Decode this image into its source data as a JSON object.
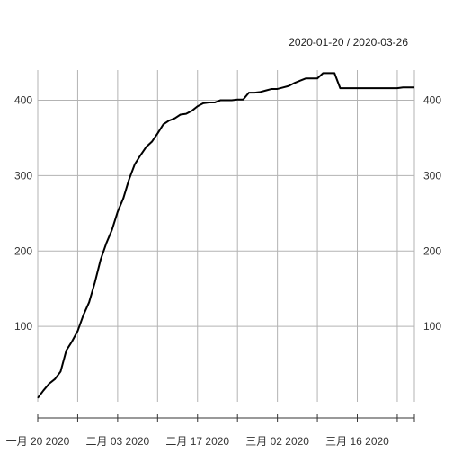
{
  "header": {
    "date_range": "2020-01-20 / 2020-03-26"
  },
  "colors": {
    "line": "#000000",
    "grid": "#b3b3b3",
    "axis": "#333333",
    "text": "#333333"
  },
  "chart_data": {
    "type": "line",
    "title": "",
    "xlabel": "",
    "ylabel": "",
    "x_range": [
      "2020-01-20",
      "2020-03-26"
    ],
    "ylim": [
      0,
      440
    ],
    "grid": true,
    "y_ticks": [
      100,
      200,
      300,
      400
    ],
    "y_tick_labels": [
      "100",
      "200",
      "300",
      "400"
    ],
    "x_ticks": [
      "2020-01-20",
      "2020-01-27",
      "2020-02-03",
      "2020-02-10",
      "2020-02-17",
      "2020-02-24",
      "2020-03-02",
      "2020-03-09",
      "2020-03-16",
      "2020-03-23"
    ],
    "x_tick_labels": [
      "一月 20 2020",
      "",
      "二月 03 2020",
      "",
      "二月 17 2020",
      "",
      "三月 02 2020",
      "",
      "三月 16 2020",
      ""
    ],
    "series": [
      {
        "dates": [
          "2020-01-20",
          "2020-01-21",
          "2020-01-22",
          "2020-01-23",
          "2020-01-24",
          "2020-01-25",
          "2020-01-26",
          "2020-01-27",
          "2020-01-28",
          "2020-01-29",
          "2020-01-30",
          "2020-01-31",
          "2020-02-01",
          "2020-02-02",
          "2020-02-03",
          "2020-02-04",
          "2020-02-05",
          "2020-02-06",
          "2020-02-07",
          "2020-02-08",
          "2020-02-09",
          "2020-02-10",
          "2020-02-11",
          "2020-02-12",
          "2020-02-13",
          "2020-02-14",
          "2020-02-15",
          "2020-02-16",
          "2020-02-17",
          "2020-02-18",
          "2020-02-19",
          "2020-02-20",
          "2020-02-21",
          "2020-02-22",
          "2020-02-23",
          "2020-02-24",
          "2020-02-25",
          "2020-02-26",
          "2020-02-27",
          "2020-02-28",
          "2020-02-29",
          "2020-03-01",
          "2020-03-02",
          "2020-03-03",
          "2020-03-04",
          "2020-03-05",
          "2020-03-06",
          "2020-03-07",
          "2020-03-08",
          "2020-03-09",
          "2020-03-10",
          "2020-03-11",
          "2020-03-12",
          "2020-03-13",
          "2020-03-14",
          "2020-03-15",
          "2020-03-16",
          "2020-03-17",
          "2020-03-18",
          "2020-03-19",
          "2020-03-20",
          "2020-03-21",
          "2020-03-22",
          "2020-03-23",
          "2020-03-24",
          "2020-03-25",
          "2020-03-26"
        ],
        "values": [
          5,
          15,
          24,
          30,
          40,
          68,
          80,
          94,
          115,
          132,
          158,
          188,
          210,
          228,
          252,
          270,
          295,
          315,
          327,
          338,
          345,
          356,
          368,
          373,
          376,
          381,
          382,
          386,
          392,
          396,
          397,
          397,
          400,
          400,
          400,
          401,
          401,
          410,
          410,
          411,
          413,
          415,
          415,
          417,
          419,
          423,
          426,
          429,
          429,
          429,
          436,
          436,
          436,
          416,
          416,
          416,
          416,
          416,
          416,
          416,
          416,
          416,
          416,
          416,
          417,
          417,
          417
        ]
      }
    ]
  }
}
